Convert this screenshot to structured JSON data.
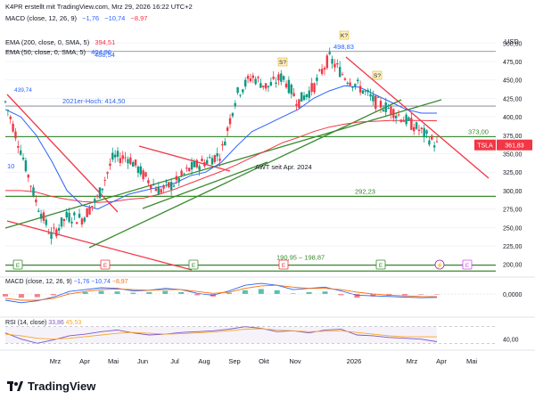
{
  "header": {
    "credit": "K4PR erstellt mit TradingView.com, Mrz 29, 2026 16:22 UTC+2",
    "macd_top": {
      "label": "MACD (close, 12, 26, 9)",
      "v1": "−1,76",
      "v2": "−10,74",
      "v3": "−8,97"
    },
    "ema200": {
      "label": "EMA (200, close, 0, SMA, 5)",
      "value": "394,51"
    },
    "ema50": {
      "label": "EMA (50, close, 0, SMA, 5)",
      "value": "404,96"
    }
  },
  "currency": "USD",
  "colors": {
    "candle_up": "#089981",
    "candle_down": "#f23645",
    "ema50": "#2962ff",
    "ema200": "#f23645",
    "trend_red": "#f23645",
    "trend_green": "#3a8a2e",
    "hline": "#787b86",
    "accent_purple": "#9c27b0"
  },
  "chart_data": [
    {
      "type": "line",
      "title": "",
      "xlabel": "",
      "ylabel": "USD",
      "ylim": [
        190,
        510
      ],
      "x_ticks": [
        "Mrz",
        "Apr",
        "Mai",
        "Jun",
        "Jul",
        "Aug",
        "Sep",
        "Okt",
        "Nov",
        "2026",
        "Mrz",
        "Apr",
        "Mai"
      ],
      "y_ticks": [
        "500,00",
        "475,00",
        "450,00",
        "425,00",
        "400,00",
        "375,00",
        "350,00",
        "325,00",
        "300,00",
        "275,00",
        "250,00",
        "225,00",
        "200,00"
      ],
      "x": [
        "Feb 1",
        "Feb 15",
        "Mrz 1",
        "Mrz 15",
        "Apr 1",
        "Apr 15",
        "Mai 1",
        "Mai 15",
        "Jun 1",
        "Jun 15",
        "Jul 1",
        "Jul 15",
        "Aug 1",
        "Aug 15",
        "Sep 1",
        "Sep 15",
        "Okt 1",
        "Okt 15",
        "Nov 1",
        "Nov 15",
        "Dez 1",
        "Dez 15",
        "Jan 1",
        "Jan 15",
        "Feb 1",
        "Feb 15",
        "Mrz 1",
        "Mrz 15",
        "Mrz 27"
      ],
      "series": [
        {
          "name": "TSLA",
          "values": [
            420,
            355,
            285,
            238,
            265,
            262,
            290,
            345,
            345,
            320,
            300,
            310,
            330,
            340,
            350,
            430,
            455,
            440,
            455,
            420,
            440,
            480,
            455,
            440,
            420,
            410,
            395,
            380,
            361.83
          ]
        },
        {
          "name": "EMA (200, close, 0, SMA, 5)",
          "values": [
            300,
            300,
            298,
            292,
            288,
            285,
            284,
            285,
            288,
            290,
            295,
            302,
            310,
            318,
            326,
            335,
            345,
            355,
            365,
            372,
            380,
            386,
            390,
            393,
            394,
            395,
            395,
            395,
            394.51
          ]
        },
        {
          "name": "EMA (50, close, 0, SMA, 5)",
          "values": [
            410,
            400,
            375,
            340,
            300,
            280,
            275,
            285,
            295,
            300,
            305,
            310,
            320,
            325,
            338,
            360,
            380,
            390,
            400,
            410,
            425,
            435,
            442,
            440,
            430,
            420,
            410,
            404.96,
            404.96
          ]
        }
      ],
      "horizontal_levels": [
        {
          "label": "2021er-Hoch: 414,50",
          "value": 414.5
        },
        {
          "label": "373,00",
          "value": 373.0
        },
        {
          "label": "292,23",
          "value": 292.23
        },
        {
          "label": "190,95 – 198,87",
          "value": 198.87
        },
        {
          "label": "",
          "value": 190.95
        },
        {
          "label": "",
          "value": 488.54
        }
      ],
      "annotations": [
        {
          "text": "488,54",
          "value": 488.54
        },
        {
          "text": "498,83",
          "value": 498.83
        },
        {
          "text": "439,74",
          "value": 439.74
        },
        {
          "text": "AWT seit Apr. 2024"
        },
        {
          "text": "S?"
        },
        {
          "text": "K?"
        },
        {
          "text": "S?"
        },
        {
          "text": "10"
        }
      ],
      "last_price": {
        "symbol": "TSLA",
        "value": "361,83"
      },
      "event_markers": [
        "E",
        "E",
        "E",
        "E",
        "E",
        "E",
        "E"
      ]
    },
    {
      "type": "bar",
      "title": "MACD (close, 12, 26, 9)",
      "legend_values": [
        "−1,76",
        "−10,74",
        "−8,97"
      ],
      "y_ticks": [
        "0,0000"
      ],
      "histogram": [
        -8,
        -12,
        -10,
        -4,
        2,
        6,
        10,
        8,
        4,
        6,
        10,
        6,
        -4,
        -8,
        4,
        12,
        16,
        12,
        2,
        6,
        8,
        -4,
        -12,
        -8,
        -6,
        -4,
        -2,
        -1.76
      ],
      "macd": [
        -20,
        -28,
        -22,
        -10,
        8,
        14,
        20,
        18,
        10,
        12,
        18,
        14,
        2,
        -4,
        10,
        28,
        34,
        28,
        14,
        18,
        22,
        10,
        -4,
        -6,
        -8,
        -10,
        -12,
        -10.74
      ],
      "signal": [
        -14,
        -20,
        -20,
        -14,
        0,
        8,
        14,
        16,
        14,
        12,
        14,
        14,
        8,
        2,
        6,
        18,
        26,
        28,
        22,
        18,
        18,
        14,
        6,
        0,
        -4,
        -6,
        -8,
        -8.97
      ]
    },
    {
      "type": "line",
      "title": "RSI (14, close)",
      "legend_values": [
        "33,86",
        "45,53"
      ],
      "y_ticks": [
        "40,00"
      ],
      "ylim": [
        20,
        80
      ],
      "rsi": [
        55,
        40,
        30,
        38,
        48,
        52,
        58,
        62,
        55,
        50,
        52,
        56,
        58,
        60,
        64,
        70,
        66,
        58,
        60,
        55,
        62,
        64,
        50,
        48,
        44,
        42,
        40,
        33.86
      ],
      "rsi_ma": [
        52,
        48,
        42,
        40,
        42,
        46,
        50,
        54,
        56,
        54,
        52,
        53,
        55,
        57,
        60,
        64,
        65,
        62,
        60,
        58,
        59,
        60,
        56,
        52,
        48,
        46,
        45.53,
        45.53
      ]
    }
  ],
  "brand": {
    "name": "TradingView"
  }
}
